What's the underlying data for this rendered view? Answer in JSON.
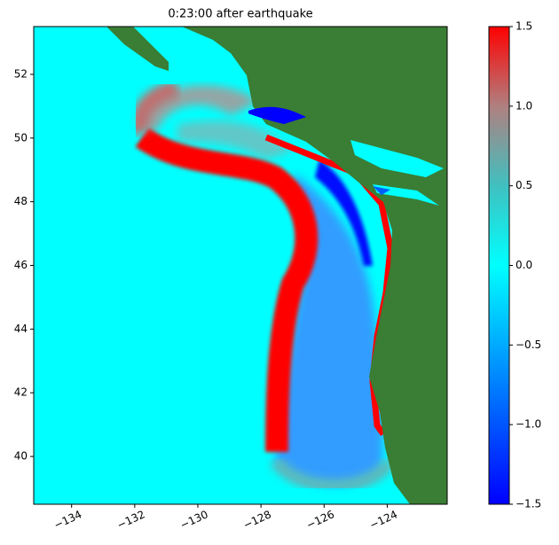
{
  "chart_data": {
    "type": "heatmap",
    "title": "0:23:00 after earthquake",
    "xlim": [
      -135.2,
      -122.1
    ],
    "ylim": [
      38.5,
      53.5
    ],
    "xticks": [
      {
        "value": -134,
        "label": "−134"
      },
      {
        "value": -132,
        "label": "−132"
      },
      {
        "value": -130,
        "label": "−130"
      },
      {
        "value": -128,
        "label": "−128"
      },
      {
        "value": -126,
        "label": "−126"
      },
      {
        "value": -124,
        "label": "−124"
      }
    ],
    "yticks": [
      40,
      42,
      44,
      46,
      48,
      50,
      52
    ],
    "colorbar": {
      "clim": [
        -1.5,
        1.5
      ],
      "ticks": [
        {
          "value": -1.5,
          "label": "−1.5"
        },
        {
          "value": -1.0,
          "label": "−1.0"
        },
        {
          "value": -0.5,
          "label": "−0.5"
        },
        {
          "value": 0,
          "label": "0.0"
        },
        0.5,
        {
          "value": 1.0,
          "label": "1.0"
        },
        1.5
      ]
    }
  }
}
